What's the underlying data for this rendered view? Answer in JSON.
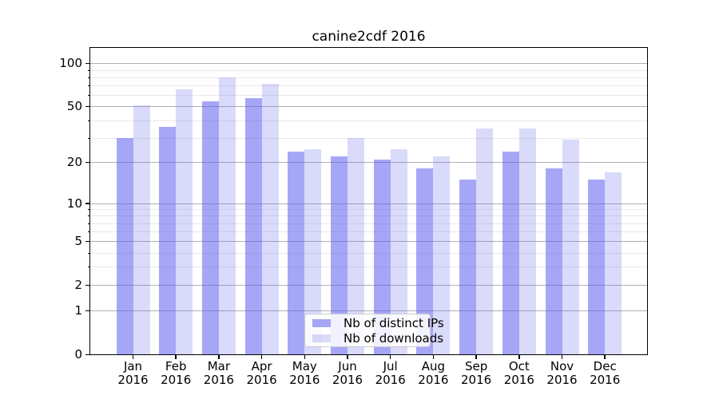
{
  "title": "canine2cdf 2016",
  "chart_data": {
    "type": "bar",
    "title": "canine2cdf 2016",
    "scale": "log1p",
    "year": "2016",
    "categories": [
      "Jan",
      "Feb",
      "Mar",
      "Apr",
      "May",
      "Jun",
      "Jul",
      "Aug",
      "Sep",
      "Oct",
      "Nov",
      "Dec"
    ],
    "series": [
      {
        "name": "Nb of distinct IPs",
        "color": "rgba(85,85,238,0.52)",
        "values": [
          30,
          36,
          54,
          57,
          24,
          22,
          21,
          18,
          15,
          24,
          18,
          15
        ]
      },
      {
        "name": "Nb of downloads",
        "color": "rgba(85,85,238,0.22)",
        "values": [
          51,
          66,
          80,
          72,
          25,
          30,
          25,
          22,
          35,
          35,
          29,
          17
        ]
      }
    ],
    "y_axis": {
      "ticks": [
        100,
        50,
        20,
        10,
        5,
        2,
        1,
        0
      ],
      "minor_gridlines": [
        3,
        4,
        6,
        7,
        8,
        9,
        30,
        40,
        60,
        70,
        80,
        90
      ],
      "ylim": [
        0,
        128
      ]
    },
    "xlabel": "",
    "ylabel": "",
    "grid": true,
    "legend_position": "lower center"
  },
  "colors": {
    "bar_base": "#5555ee",
    "grid_major": "#b1b1b1",
    "grid_minor": "#e9e9e9",
    "spine": "#000000",
    "legend_border": "#cccccc",
    "legend_background": "rgba(255,255,255,0.85)"
  }
}
